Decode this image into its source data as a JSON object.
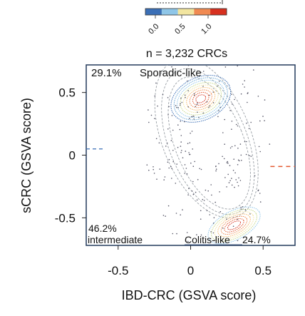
{
  "chart_data": {
    "type": "scatter",
    "subtitle": "n = 3,232 CRCs",
    "colorbar": {
      "colors": [
        "#3b6fb6",
        "#8fc6e8",
        "#f2e5a0",
        "#f08a52",
        "#d7301f"
      ]
    },
    "colorbar_ticks": [
      "0.0",
      "0.5",
      "1.0"
    ],
    "xlabel": "IBD-CRC (GSVA score)",
    "ylabel": "sCRC (GSVA score)",
    "xlim": [
      -0.72,
      0.72
    ],
    "ylim": [
      -0.72,
      0.72
    ],
    "xticks": [
      -0.5,
      0,
      0.5
    ],
    "xtick_labels": [
      "-0.5",
      "0",
      "0.5"
    ],
    "yticks": [
      0.5,
      0,
      -0.5
    ],
    "ytick_labels": [
      "0.5",
      "0",
      "-0.5"
    ],
    "thresholds": {
      "x": 0.58,
      "y": 0.05
    },
    "annotations": [
      {
        "text": "29.1%",
        "name": "sporadic-like-percent"
      },
      {
        "text": "Sporadic-like",
        "name": "sporadic-like-label"
      },
      {
        "text": "46.2%",
        "name": "intermediate-percent"
      },
      {
        "text": "intermediate",
        "name": "intermediate-label"
      },
      {
        "text": "Colitis-like",
        "name": "colitis-like-label"
      },
      {
        "text": "24.7%",
        "name": "colitis-like-percent"
      }
    ],
    "density_peaks": [
      {
        "name": "sporadic-like",
        "x": 0.07,
        "y": 0.45
      },
      {
        "name": "colitis-like",
        "x": 0.3,
        "y": -0.56
      }
    ],
    "colors": {
      "threshold": "#e4572e",
      "gray_contour": "#9aa0a6"
    }
  }
}
